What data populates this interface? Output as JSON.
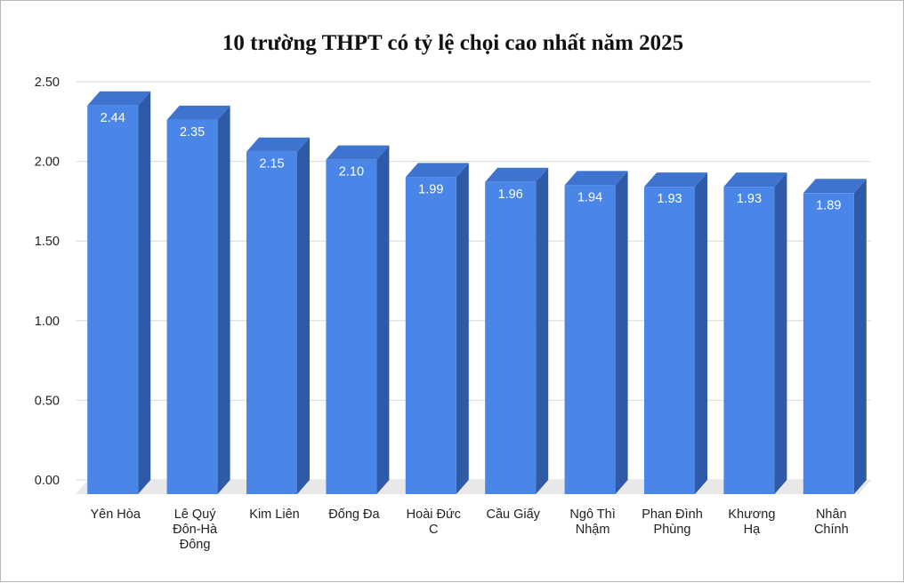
{
  "chart_data": {
    "type": "bar",
    "title": "10 trường THPT có tỷ lệ chọi cao nhất năm 2025",
    "xlabel": "",
    "ylabel": "",
    "categories": [
      "Yên Hòa",
      "Lê Quý Đôn-Hà Đông",
      "Kim Liên",
      "Đống Đa",
      "Hoài Đức C",
      "Cầu Giấy",
      "Ngô Thì Nhậm",
      "Phan Đình Phùng",
      "Khương Hạ",
      "Nhân Chính"
    ],
    "category_lines": [
      [
        "Yên Hòa"
      ],
      [
        "Lê Quý",
        "Đôn-Hà",
        "Đông"
      ],
      [
        "Kim Liên"
      ],
      [
        "Đống Đa"
      ],
      [
        "Hoài Đức",
        "C"
      ],
      [
        "Cầu Giấy"
      ],
      [
        "Ngô Thì",
        "Nhậm"
      ],
      [
        "Phan Đình",
        "Phùng"
      ],
      [
        "Khương",
        "Hạ"
      ],
      [
        "Nhân",
        "Chính"
      ]
    ],
    "values": [
      2.44,
      2.35,
      2.15,
      2.1,
      1.99,
      1.96,
      1.94,
      1.93,
      1.93,
      1.89
    ],
    "value_labels": [
      "2.44",
      "2.35",
      "2.15",
      "2.10",
      "1.99",
      "1.96",
      "1.94",
      "1.93",
      "1.93",
      "1.89"
    ],
    "ylim": [
      0,
      2.5
    ],
    "yticks": [
      "0.00",
      "0.50",
      "1.00",
      "1.50",
      "2.00",
      "2.50"
    ],
    "grid": true,
    "legend": "none",
    "style": "3d",
    "colors": {
      "bar_front": "#4a86e8",
      "bar_side": "#2e5aa8",
      "bar_top": "#3f73d0",
      "gridline": "#d9d9d9",
      "floor": "#e8e8e8"
    }
  }
}
